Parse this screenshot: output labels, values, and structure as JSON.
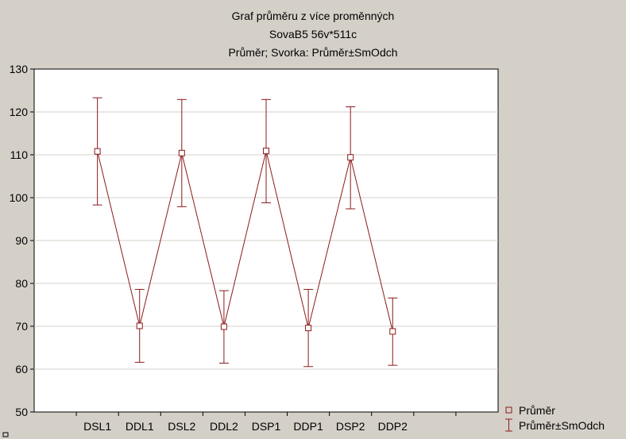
{
  "chart_data": {
    "type": "line",
    "title": [
      "Graf průměru z více proměnných",
      "SovaB5 56v*511c",
      "Průměr; Svorka: Průměr±SmOdch"
    ],
    "categories": [
      "DSL1",
      "DDL1",
      "DSL2",
      "DDL2",
      "DSP1",
      "DDP1",
      "DSP2",
      "DDP2"
    ],
    "series": [
      {
        "name": "Průměr",
        "values": [
          110.8,
          70.1,
          110.4,
          69.9,
          110.9,
          69.6,
          109.4,
          68.8
        ],
        "err_low": [
          98.3,
          61.6,
          97.9,
          61.4,
          98.8,
          60.6,
          97.4,
          60.9
        ],
        "err_high": [
          123.3,
          78.6,
          122.9,
          78.3,
          122.9,
          78.6,
          121.2,
          76.6
        ]
      }
    ],
    "ylim": [
      50,
      130
    ],
    "yticks": [
      "50",
      "60",
      "70",
      "80",
      "90",
      "100",
      "110",
      "120",
      "130"
    ],
    "grid": true,
    "legend": {
      "placement": "bottom-right",
      "items": [
        "Průměr",
        "Průměr±SmOdch"
      ]
    },
    "colors": {
      "series": "#8b1a1a",
      "background": "#d4d0c8",
      "plot": "#ffffff",
      "grid": "#d4d0c8"
    }
  }
}
